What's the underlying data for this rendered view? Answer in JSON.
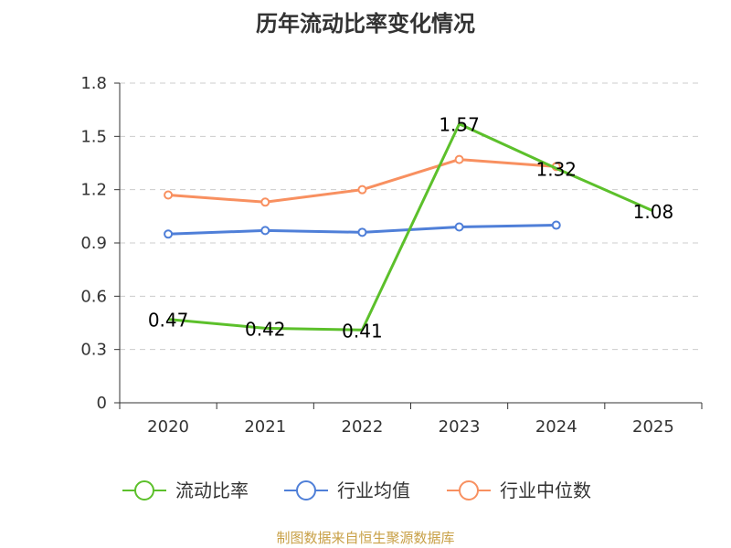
{
  "colors": {
    "ratio": "#5cc02b",
    "industry_avg": "#4f7fd8",
    "industry_median": "#f89060",
    "grid": "#cccccc",
    "axis": "#333333"
  },
  "chart_data": {
    "type": "line",
    "title": "历年流动比率变化情况",
    "categories": [
      "2020",
      "2021",
      "2022",
      "2023",
      "2024",
      "2025"
    ],
    "ylim": [
      0,
      1.8
    ],
    "yticks": [
      0,
      0.3,
      0.6,
      0.9,
      1.2,
      1.5,
      1.8
    ],
    "ytick_labels": [
      "0",
      "0.3",
      "0.6",
      "0.9",
      "1.2",
      "1.5",
      "1.8"
    ],
    "series": [
      {
        "name": "流动比率",
        "color_key": "ratio",
        "values": [
          0.47,
          0.42,
          0.41,
          1.57,
          1.32,
          1.08
        ],
        "labels": [
          "0.47",
          "0.42",
          "0.41",
          "1.57",
          "1.32",
          "1.08"
        ],
        "markers": false
      },
      {
        "name": "行业均值",
        "color_key": "industry_avg",
        "values": [
          0.95,
          0.97,
          0.96,
          0.99,
          1.0,
          null
        ],
        "labels": null,
        "markers": true
      },
      {
        "name": "行业中位数",
        "color_key": "industry_median",
        "values": [
          1.17,
          1.13,
          1.2,
          1.37,
          1.33,
          null
        ],
        "labels": null,
        "markers": true
      }
    ],
    "legend_position": "bottom"
  },
  "footer": {
    "source": "制图数据来自恒生聚源数据库"
  }
}
